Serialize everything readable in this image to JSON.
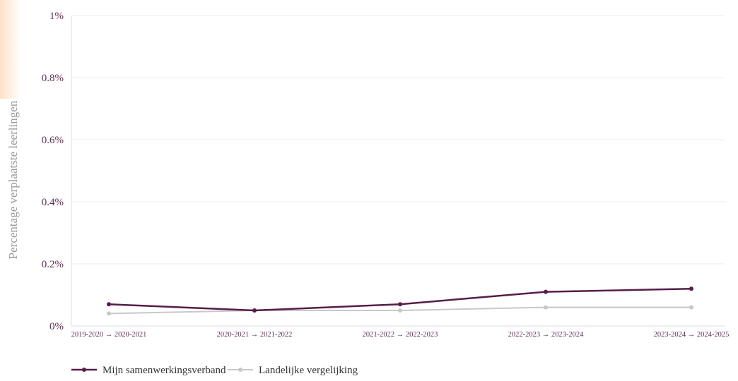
{
  "chart_data": {
    "type": "line",
    "categories": [
      "2019-2020 → 2020-2021",
      "2020-2021 → 2021-2022",
      "2021-2022 → 2022-2023",
      "2022-2023 → 2023-2024",
      "2023-2024 → 2024-2025"
    ],
    "series": [
      {
        "name": "Mijn samenwerkingsverband",
        "color": "#5c1a4c",
        "values": [
          0.07,
          0.05,
          0.07,
          0.11,
          0.12
        ]
      },
      {
        "name": "Landelijke vergelijking",
        "color": "#c8c8c8",
        "values": [
          0.04,
          0.05,
          0.05,
          0.06,
          0.06
        ]
      }
    ],
    "ylabel": "Percentage verplaatste leerlingen",
    "ylim": [
      0,
      1
    ],
    "yticks": [
      "0%",
      "0.2%",
      "0.4%",
      "0.6%",
      "0.8%",
      "1%"
    ],
    "grid": true,
    "legend_position": "bottom-left"
  }
}
